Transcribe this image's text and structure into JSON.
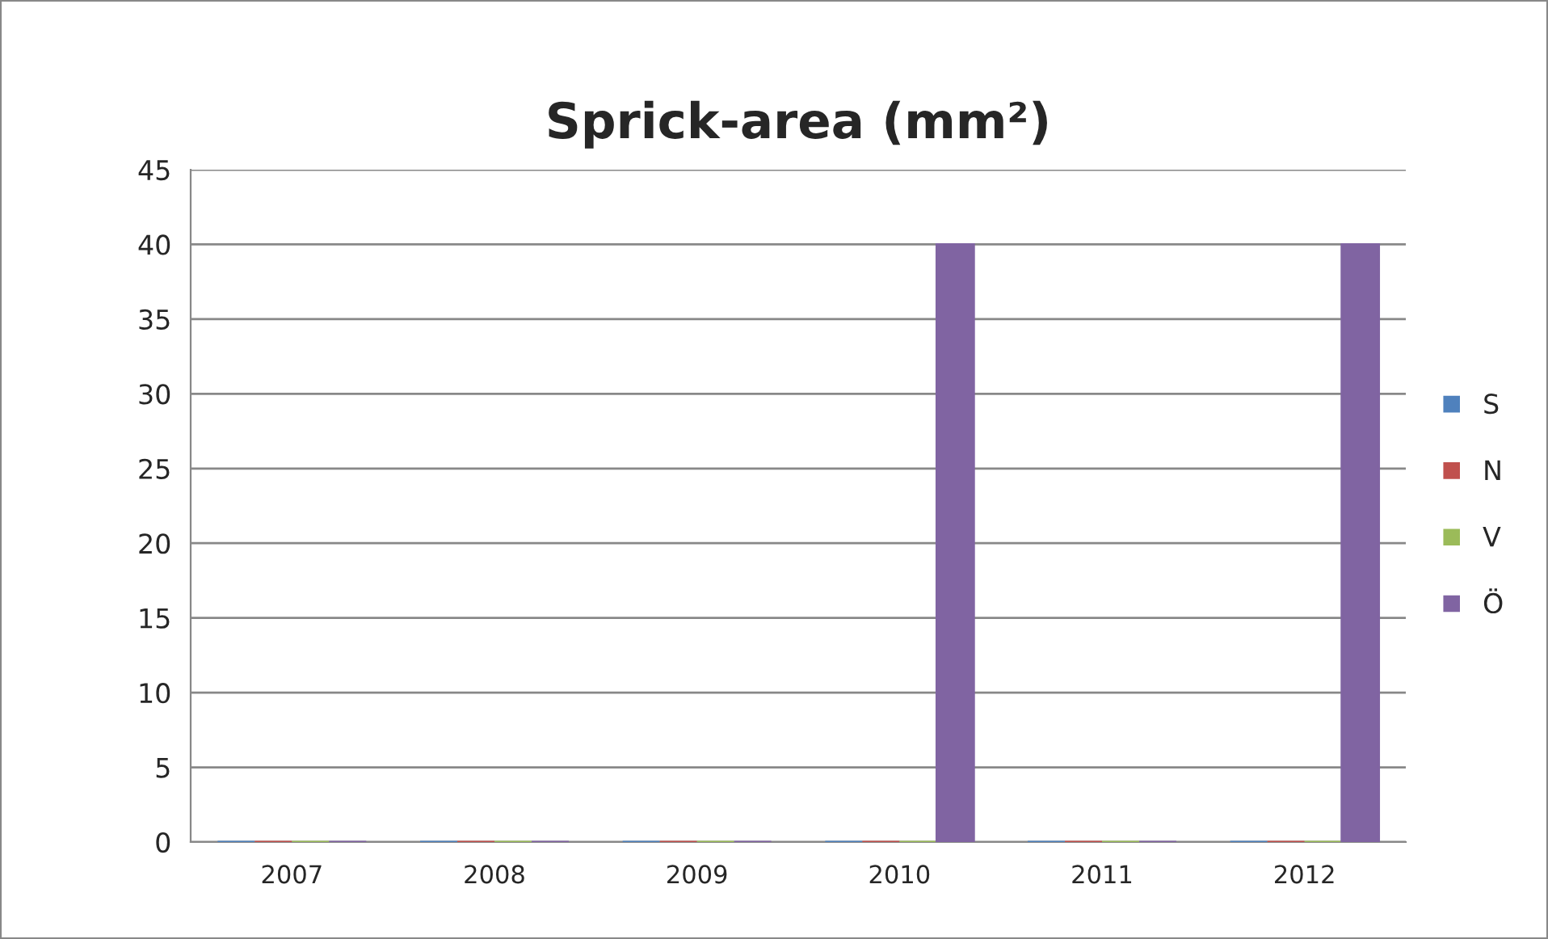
{
  "chart_data": {
    "type": "bar",
    "title": "Sprick-area (mm²)",
    "categories": [
      "2007",
      "2008",
      "2009",
      "2010",
      "2011",
      "2012"
    ],
    "series": [
      {
        "name": "S",
        "color": "#4f81bd",
        "values": [
          0,
          0,
          0,
          0,
          0,
          0
        ]
      },
      {
        "name": "N",
        "color": "#c0504d",
        "values": [
          0,
          0,
          0,
          0,
          0,
          0
        ]
      },
      {
        "name": "V",
        "color": "#9bbb59",
        "values": [
          0,
          0,
          0,
          0,
          0,
          0
        ]
      },
      {
        "name": "Ö",
        "color": "#8064a2",
        "values": [
          0,
          0,
          0,
          40,
          0,
          40
        ]
      }
    ],
    "ylim": [
      0,
      45
    ],
    "yticks": [
      0,
      5,
      10,
      15,
      20,
      25,
      30,
      35,
      40,
      45
    ],
    "grid": "y",
    "legend": "right"
  }
}
